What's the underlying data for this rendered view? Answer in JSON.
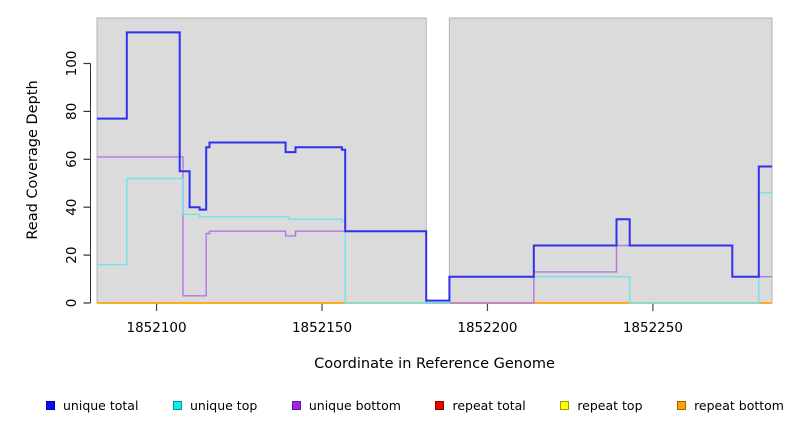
{
  "chart_data": {
    "type": "line",
    "style": "step",
    "title": "",
    "xlabel": "Coordinate in Reference Genome",
    "ylabel": "Read Coverage Depth",
    "xlim": [
      1852082,
      1852286
    ],
    "ylim": [
      0,
      119
    ],
    "x_ticks": [
      1852100,
      1852150,
      1852200,
      1852250
    ],
    "y_ticks": [
      0,
      20,
      40,
      60,
      80,
      100
    ],
    "grid": false,
    "legend_position": "bottom",
    "panel_color": "#DBDBDB",
    "panel_border_color": "#B3B3B3",
    "background_panels": [
      [
        1852082,
        1852181.5
      ],
      [
        1852188.5,
        1852286
      ]
    ],
    "gap_region": [
      1852181.5,
      1852188.5
    ],
    "series": [
      {
        "name": "unique total",
        "color": "#3030EE",
        "swatch": "#0B0BFF",
        "line_width": 2,
        "points": [
          [
            1852082,
            77
          ],
          [
            1852091,
            113
          ],
          [
            1852107,
            55
          ],
          [
            1852110,
            40
          ],
          [
            1852113,
            39
          ],
          [
            1852115,
            65
          ],
          [
            1852116,
            67
          ],
          [
            1852139,
            63
          ],
          [
            1852142,
            65
          ],
          [
            1852156,
            64
          ],
          [
            1852157,
            30
          ],
          [
            1852181.5,
            1
          ],
          [
            1852188.5,
            11
          ],
          [
            1852214,
            24
          ],
          [
            1852239,
            35
          ],
          [
            1852243,
            24
          ],
          [
            1852274,
            11
          ],
          [
            1852282,
            57
          ]
        ]
      },
      {
        "name": "unique top",
        "color": "#6FE4EC",
        "swatch": "#00F2F2",
        "line_width": 1.4,
        "points": [
          [
            1852082,
            16
          ],
          [
            1852091,
            52
          ],
          [
            1852108,
            37
          ],
          [
            1852113,
            36
          ],
          [
            1852140,
            35
          ],
          [
            1852156,
            34
          ],
          [
            1852157,
            0
          ],
          [
            1852188.5,
            11
          ],
          [
            1852243,
            0
          ],
          [
            1852282,
            46
          ]
        ]
      },
      {
        "name": "unique bottom",
        "color": "#B476E2",
        "swatch": "#A020F0",
        "line_width": 1.4,
        "points": [
          [
            1852082,
            61
          ],
          [
            1852108,
            3
          ],
          [
            1852115,
            29
          ],
          [
            1852116,
            30
          ],
          [
            1852139,
            28
          ],
          [
            1852142,
            30
          ],
          [
            1852181.5,
            0
          ],
          [
            1852214,
            13
          ],
          [
            1852239,
            24
          ],
          [
            1852274,
            11
          ]
        ]
      },
      {
        "name": "repeat total",
        "color": "#EE0000",
        "swatch": "#EE0000",
        "line_width": 1.3,
        "points": [
          [
            1852082,
            0
          ]
        ]
      },
      {
        "name": "repeat top",
        "color": "#FFFF00",
        "swatch": "#FFFF00",
        "line_width": 1.3,
        "points": [
          [
            1852082,
            0
          ]
        ]
      },
      {
        "name": "repeat bottom",
        "color": "#FFA500",
        "swatch": "#FFA500",
        "line_width": 1.6,
        "points": [
          [
            1852082,
            0
          ]
        ]
      }
    ],
    "draw_order": [
      3,
      4,
      5,
      2,
      1,
      0
    ]
  }
}
